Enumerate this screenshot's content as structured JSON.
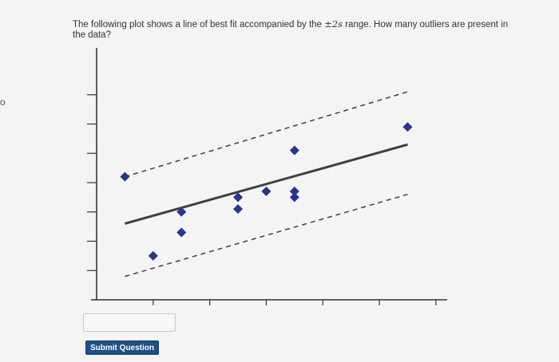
{
  "page": {
    "edge_marker": "o"
  },
  "question": {
    "text_before": "The following plot shows a line of best fit accompanied by the ",
    "pm_symbol": "±",
    "range_value": "2s",
    "text_after": " range. How many outliers are present in the data?"
  },
  "answer": {
    "value": ""
  },
  "submit": {
    "label": "Submit Question"
  },
  "colors": {
    "point": "#27358f",
    "best_fit_line": "#3f3f3f",
    "range_lines": "#3f3f3f",
    "submit_button": "#1d4f86"
  },
  "chart_data": {
    "type": "scatter",
    "title": "",
    "xlabel": "",
    "ylabel": "",
    "xlim": [
      0,
      6.2
    ],
    "ylim": [
      0,
      8.6
    ],
    "grid": false,
    "tick_labels_shown": false,
    "x_ticks": [
      1,
      2,
      3,
      4,
      5,
      6
    ],
    "y_ticks": [
      1,
      2,
      3,
      4,
      5,
      6,
      7
    ],
    "points": [
      {
        "x": 0.5,
        "y": 4.2
      },
      {
        "x": 1.0,
        "y": 1.5
      },
      {
        "x": 1.5,
        "y": 2.3
      },
      {
        "x": 1.5,
        "y": 3.0
      },
      {
        "x": 2.5,
        "y": 3.5
      },
      {
        "x": 2.5,
        "y": 3.1
      },
      {
        "x": 3.0,
        "y": 3.7
      },
      {
        "x": 3.5,
        "y": 3.7
      },
      {
        "x": 3.5,
        "y": 3.5
      },
      {
        "x": 3.5,
        "y": 5.1
      },
      {
        "x": 5.5,
        "y": 5.9
      }
    ],
    "best_fit_line": {
      "x": [
        0.5,
        5.5
      ],
      "y": [
        2.6,
        5.3
      ]
    },
    "upper_range_line": {
      "x": [
        0.5,
        5.5
      ],
      "y": [
        4.2,
        7.1
      ]
    },
    "lower_range_line": {
      "x": [
        0.5,
        5.5
      ],
      "y": [
        0.8,
        3.6
      ]
    }
  }
}
